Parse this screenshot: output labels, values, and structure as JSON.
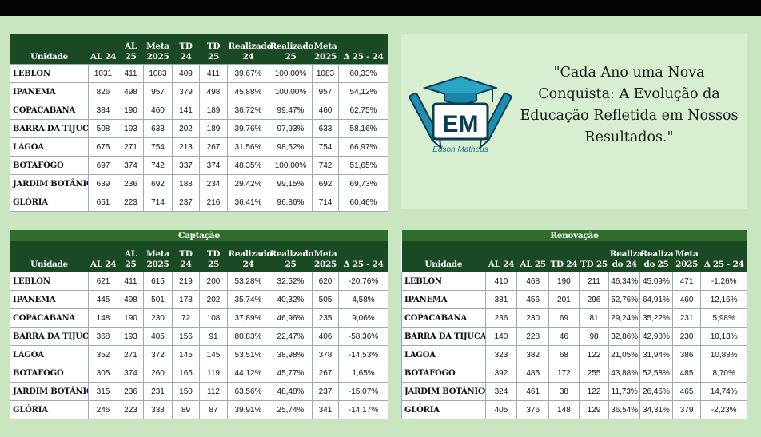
{
  "quote": "\"Cada Ano uma Nova Conquista: A Evolução da Educação Refletida em Nossos Resultados.\"",
  "logo": {
    "initials": "EM",
    "name": "Edson Matheus"
  },
  "table1": {
    "title": "",
    "headers": [
      "Unidade",
      "AL 24",
      "AL 25",
      "Meta 2025",
      "TD 24",
      "TD 25",
      "Realizado 24",
      "Realizado 25",
      "Meta 2025",
      "Δ 25 - 24"
    ],
    "rows": [
      [
        "LEBLON",
        "1031",
        "411",
        "1083",
        "409",
        "411",
        "39,67%",
        "100,00%",
        "1083",
        "60,33%"
      ],
      [
        "IPANEMA",
        "826",
        "498",
        "957",
        "379",
        "498",
        "45,88%",
        "100,00%",
        "957",
        "54,12%"
      ],
      [
        "COPACABANA",
        "384",
        "190",
        "460",
        "141",
        "189",
        "36,72%",
        "99,47%",
        "460",
        "62,75%"
      ],
      [
        "BARRA DA TIJUCA",
        "508",
        "193",
        "633",
        "202",
        "189",
        "39,76%",
        "97,93%",
        "633",
        "58,16%"
      ],
      [
        "LAGOA",
        "675",
        "271",
        "754",
        "213",
        "267",
        "31,56%",
        "98,52%",
        "754",
        "66,97%"
      ],
      [
        "BOTAFOGO",
        "697",
        "374",
        "742",
        "337",
        "374",
        "48,35%",
        "100,00%",
        "742",
        "51,65%"
      ],
      [
        "JARDIM BOTÂNICO",
        "639",
        "236",
        "692",
        "188",
        "234",
        "29,42%",
        "99,15%",
        "692",
        "69,73%"
      ],
      [
        "GLÓRIA",
        "651",
        "223",
        "714",
        "237",
        "216",
        "36,41%",
        "96,86%",
        "714",
        "60,46%"
      ]
    ]
  },
  "table2": {
    "title": "Captação",
    "headers": [
      "Unidade",
      "AL 24",
      "AL 25",
      "Meta 2025",
      "TD 24",
      "TD 25",
      "Realizado 24",
      "Realizado 25",
      "Meta 2025",
      "Δ 25 - 24"
    ],
    "rows": [
      [
        "LEBLON",
        "621",
        "411",
        "615",
        "219",
        "200",
        "53,28%",
        "32,52%",
        "620",
        "-20,76%"
      ],
      [
        "IPANEMA",
        "445",
        "498",
        "501",
        "178",
        "202",
        "35,74%",
        "40,32%",
        "505",
        "4,58%"
      ],
      [
        "COPACABANA",
        "148",
        "190",
        "230",
        "72",
        "108",
        "37,89%",
        "46,96%",
        "235",
        "9,06%"
      ],
      [
        "BARRA DA TIJUCA",
        "368",
        "193",
        "405",
        "156",
        "91",
        "80,83%",
        "22,47%",
        "406",
        "-58,36%"
      ],
      [
        "LAGOA",
        "352",
        "271",
        "372",
        "145",
        "145",
        "53,51%",
        "38,98%",
        "378",
        "-14,53%"
      ],
      [
        "BOTAFOGO",
        "305",
        "374",
        "260",
        "165",
        "119",
        "44,12%",
        "45,77%",
        "267",
        "1,65%"
      ],
      [
        "JARDIM BOTÂNICO",
        "315",
        "236",
        "231",
        "150",
        "112",
        "63,56%",
        "48,48%",
        "237",
        "-15,07%"
      ],
      [
        "GLÓRIA",
        "246",
        "223",
        "338",
        "89",
        "87",
        "39,91%",
        "25,74%",
        "341",
        "-14,17%"
      ]
    ]
  },
  "table3": {
    "title": "Renovação",
    "headers": [
      "Unidade",
      "AL 24",
      "AL 25",
      "TD 24",
      "TD 25",
      "Realiza do 24",
      "Realiza do 25",
      "Meta 2025",
      "Δ 25 - 24"
    ],
    "rows": [
      [
        "LEBLON",
        "410",
        "468",
        "190",
        "211",
        "46,34%",
        "45,09%",
        "471",
        "-1,26%"
      ],
      [
        "IPANEMA",
        "381",
        "456",
        "201",
        "296",
        "52,76%",
        "64,91%",
        "460",
        "12,16%"
      ],
      [
        "COPACABANA",
        "236",
        "230",
        "69",
        "81",
        "29,24%",
        "35,22%",
        "231",
        "5,98%"
      ],
      [
        "BARRA DA TIJUCA",
        "140",
        "228",
        "46",
        "98",
        "32,86%",
        "42,98%",
        "230",
        "10,13%"
      ],
      [
        "LAGOA",
        "323",
        "382",
        "68",
        "122",
        "21,05%",
        "31,94%",
        "386",
        "10,88%"
      ],
      [
        "BOTAFOGO",
        "392",
        "485",
        "172",
        "255",
        "43,88%",
        "52,58%",
        "485",
        "8,70%"
      ],
      [
        "JARDIM BOTÂNICO",
        "324",
        "461",
        "38",
        "122",
        "11,73%",
        "26,46%",
        "465",
        "14,74%"
      ],
      [
        "GLÓRIA",
        "405",
        "376",
        "148",
        "129",
        "36,54%",
        "34,31%",
        "379",
        "-2,23%"
      ]
    ]
  }
}
